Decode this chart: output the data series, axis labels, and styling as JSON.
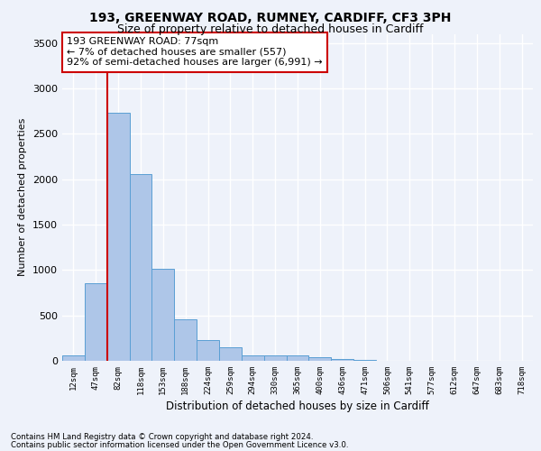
{
  "title1": "193, GREENWAY ROAD, RUMNEY, CARDIFF, CF3 3PH",
  "title2": "Size of property relative to detached houses in Cardiff",
  "xlabel": "Distribution of detached houses by size in Cardiff",
  "ylabel": "Number of detached properties",
  "categories": [
    "12sqm",
    "47sqm",
    "82sqm",
    "118sqm",
    "153sqm",
    "188sqm",
    "224sqm",
    "259sqm",
    "294sqm",
    "330sqm",
    "365sqm",
    "400sqm",
    "436sqm",
    "471sqm",
    "506sqm",
    "541sqm",
    "577sqm",
    "612sqm",
    "647sqm",
    "683sqm",
    "718sqm"
  ],
  "values": [
    60,
    850,
    2730,
    2060,
    1010,
    460,
    230,
    145,
    60,
    55,
    55,
    35,
    20,
    8,
    3,
    2,
    1,
    1,
    0,
    0,
    0
  ],
  "bar_color": "#aec6e8",
  "bar_edgecolor": "#5a9fd4",
  "annotation_text": "193 GREENWAY ROAD: 77sqm\n← 7% of detached houses are smaller (557)\n92% of semi-detached houses are larger (6,991) →",
  "annotation_box_color": "#ffffff",
  "annotation_box_edgecolor": "#cc0000",
  "ylim": [
    0,
    3600
  ],
  "yticks": [
    0,
    500,
    1000,
    1500,
    2000,
    2500,
    3000,
    3500
  ],
  "footer1": "Contains HM Land Registry data © Crown copyright and database right 2024.",
  "footer2": "Contains public sector information licensed under the Open Government Licence v3.0.",
  "bg_color": "#eef2fa",
  "grid_color": "#ffffff",
  "title1_fontsize": 10,
  "title2_fontsize": 9,
  "red_line_color": "#cc0000",
  "red_line_x": 2.5
}
